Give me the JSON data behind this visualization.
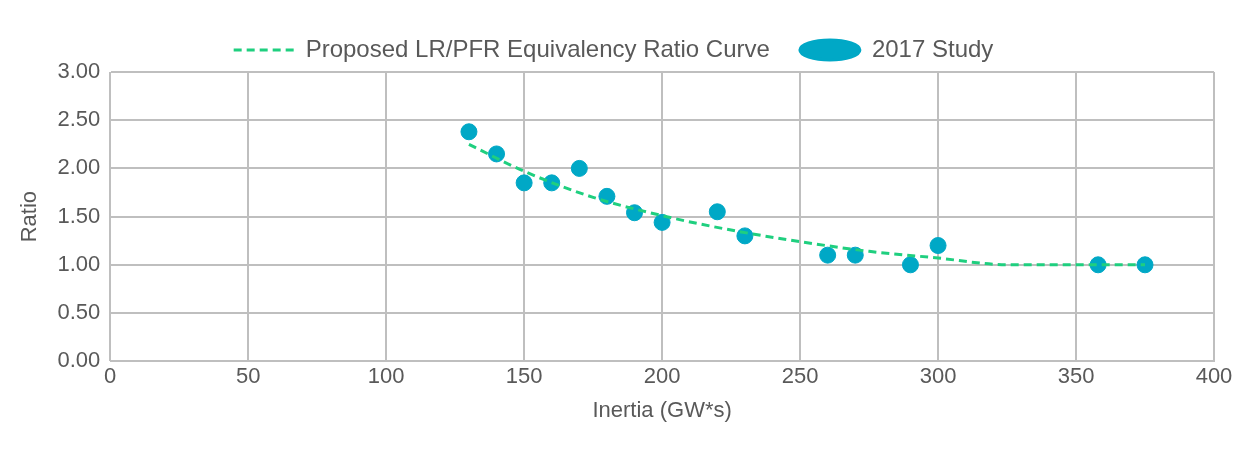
{
  "chart_data": {
    "type": "scatter",
    "xlabel": "Inertia (GW*s)",
    "ylabel": "Ratio",
    "xlim": [
      0,
      400
    ],
    "xticks": [
      0,
      50,
      100,
      150,
      200,
      250,
      300,
      350,
      400
    ],
    "ylim": [
      0,
      3
    ],
    "yticks": [
      {
        "value": 0,
        "label": "0.00"
      },
      {
        "value": 0.5,
        "label": "0.50"
      },
      {
        "value": 1,
        "label": "1.00"
      },
      {
        "value": 1.5,
        "label": "1.50"
      },
      {
        "value": 2,
        "label": "2.00"
      },
      {
        "value": 2.5,
        "label": "2.50"
      },
      {
        "value": 3,
        "label": "3.00"
      }
    ],
    "grid": true,
    "legend": "top",
    "series": [
      {
        "name": "Proposed LR/PFR Equivalency Ratio Curve",
        "type": "line",
        "color": "#1fcf7f",
        "line_style": "dashed",
        "marker": "none",
        "x": [
          130,
          150,
          175,
          200,
          225,
          250,
          275,
          300,
          325,
          350,
          375
        ],
        "values": [
          2.25,
          1.97,
          1.7,
          1.51,
          1.36,
          1.24,
          1.14,
          1.07,
          1.0,
          1.0,
          1.0
        ]
      },
      {
        "name": "2017 Study",
        "type": "scatter",
        "color": "#00a8c6",
        "marker": "circle",
        "x": [
          130,
          140,
          150,
          160,
          170,
          180,
          190,
          200,
          220,
          230,
          260,
          270,
          290,
          300,
          358,
          375
        ],
        "values": [
          2.38,
          2.15,
          1.85,
          1.85,
          2.0,
          1.71,
          1.54,
          1.44,
          1.55,
          1.3,
          1.1,
          1.1,
          1.0,
          1.2,
          1.0,
          1.0
        ]
      }
    ]
  }
}
